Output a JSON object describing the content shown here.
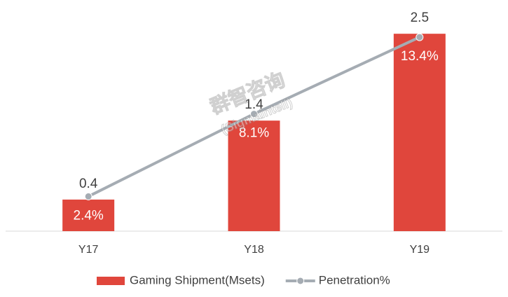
{
  "chart_data": {
    "type": "bar",
    "categories": [
      "Y17",
      "Y18",
      "Y19"
    ],
    "series": [
      {
        "name": "Gaming Shipment(Msets)",
        "type": "bar",
        "color": "#e0463c",
        "values": [
          0.4,
          1.4,
          2.5
        ]
      },
      {
        "name": "Penetration%",
        "type": "line",
        "axis": "y2",
        "color": "#a5acb3",
        "values": [
          2.4,
          8.1,
          13.4
        ],
        "value_labels": [
          "2.4%",
          "8.1%",
          "13.4%"
        ]
      }
    ],
    "ylim": [
      0,
      2.75
    ],
    "y2lim": [
      0,
      15
    ],
    "grid": false,
    "legend": "bottom",
    "watermark": [
      "群智咨询",
      "(Sigmaintell)"
    ]
  }
}
